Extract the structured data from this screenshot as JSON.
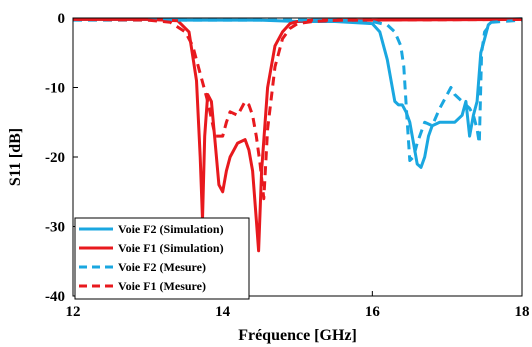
{
  "chart_data": {
    "type": "line",
    "title": "",
    "xlabel": "Fréquence [GHz]",
    "ylabel": "S11 [dB]",
    "xlim": [
      12,
      18
    ],
    "ylim": [
      -40,
      0
    ],
    "xticks": [
      12,
      14,
      16,
      18
    ],
    "yticks": [
      0,
      -10,
      -20,
      -30,
      -40
    ],
    "grid": false,
    "legend_position": "bottom-left",
    "colors": {
      "blue": "#1aa7e0",
      "red": "#e8191e"
    },
    "series": [
      {
        "name": "Voie F2 (Simulation)",
        "color": "#1aa7e0",
        "dash": "solid",
        "x": [
          12,
          13,
          13.5,
          14,
          14.5,
          15,
          15.5,
          16,
          16.1,
          16.2,
          16.3,
          16.35,
          16.4,
          16.45,
          16.5,
          16.55,
          16.6,
          16.65,
          16.7,
          16.75,
          16.8,
          16.9,
          17.0,
          17.1,
          17.2,
          17.25,
          17.3,
          17.35,
          17.4,
          17.45,
          17.5,
          17.55,
          17.6,
          17.7,
          18
        ],
        "y": [
          -0.2,
          -0.2,
          -0.3,
          -0.3,
          -0.3,
          -0.5,
          -0.5,
          -0.8,
          -2,
          -6,
          -12,
          -12.5,
          -12.5,
          -13.5,
          -15,
          -18,
          -21,
          -21.5,
          -20,
          -17,
          -15.5,
          -15,
          -15,
          -15,
          -14,
          -12,
          -17,
          -14,
          -12,
          -5,
          -3,
          -1,
          -0.5,
          -0.2,
          -0.1
        ]
      },
      {
        "name": "Voie F1 (Simulation)",
        "color": "#e8191e",
        "dash": "solid",
        "x": [
          12,
          13,
          13.4,
          13.55,
          13.65,
          13.7,
          13.73,
          13.76,
          13.8,
          13.85,
          13.9,
          13.95,
          14.0,
          14.05,
          14.1,
          14.2,
          14.3,
          14.35,
          14.4,
          14.45,
          14.48,
          14.52,
          14.6,
          14.7,
          14.8,
          14.9,
          15.0,
          15.2,
          15.5,
          16,
          18
        ],
        "y": [
          -0.2,
          -0.2,
          -0.4,
          -2,
          -9,
          -20,
          -29,
          -17,
          -11,
          -12,
          -18,
          -24,
          -25,
          -22,
          -20,
          -18,
          -17.5,
          -19,
          -22,
          -29,
          -33.5,
          -22,
          -10,
          -4,
          -2,
          -0.8,
          -0.5,
          -0.3,
          -0.3,
          -0.3,
          -0.2
        ]
      },
      {
        "name": "Voie F2 (Mesure)",
        "color": "#1aa7e0",
        "dash": "dashed",
        "x": [
          12,
          15.5,
          16.0,
          16.2,
          16.3,
          16.38,
          16.42,
          16.46,
          16.5,
          16.55,
          16.6,
          16.7,
          16.8,
          16.9,
          17.0,
          17.05,
          17.1,
          17.2,
          17.3,
          17.35,
          17.4,
          17.43,
          17.46,
          17.5,
          17.6,
          18
        ],
        "y": [
          -0.3,
          -0.3,
          -0.5,
          -1,
          -2,
          -4,
          -7,
          -14,
          -20.5,
          -20,
          -18,
          -15,
          -15.5,
          -13,
          -11,
          -10,
          -11,
          -12,
          -13,
          -14,
          -16,
          -18,
          -5,
          -2,
          -0.6,
          -0.3
        ]
      },
      {
        "name": "Voie F1 (Mesure)",
        "color": "#e8191e",
        "dash": "dashed",
        "x": [
          12,
          13,
          13.3,
          13.5,
          13.6,
          13.7,
          13.75,
          13.8,
          13.9,
          14.0,
          14.05,
          14.1,
          14.2,
          14.3,
          14.35,
          14.4,
          14.45,
          14.5,
          14.55,
          14.6,
          14.7,
          14.8,
          14.9,
          15.0,
          15.2,
          15.6,
          16,
          18
        ],
        "y": [
          -0.2,
          -0.3,
          -0.6,
          -2,
          -4,
          -8,
          -10,
          -12,
          -17,
          -17,
          -15,
          -13.5,
          -14,
          -12,
          -12.5,
          -14,
          -17,
          -21,
          -26,
          -16,
          -7,
          -3,
          -1.5,
          -0.8,
          -0.5,
          -0.3,
          -0.3,
          -0.2
        ]
      }
    ]
  }
}
